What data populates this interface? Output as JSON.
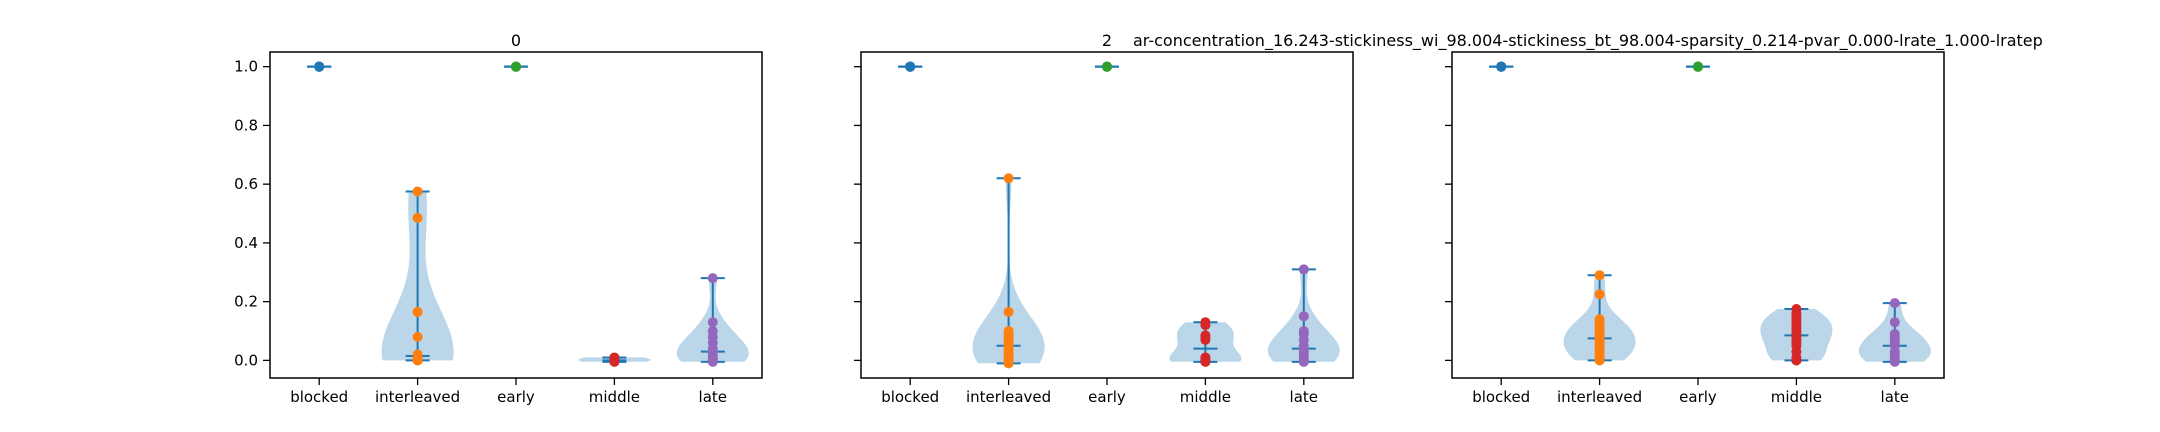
{
  "figure_title": "ar-concentration_16.243-stickiness_wi_98.004-stickiness_bt_98.004-sparsity_0.214-pvar_0.000-lrate_1.000-lratep",
  "chart_data": [
    {
      "type": "violin",
      "title": "0",
      "categories": [
        "blocked",
        "interleaved",
        "early",
        "middle",
        "late"
      ],
      "ylim": [
        -0.06,
        1.05
      ],
      "yticks": [
        0.0,
        0.2,
        0.4,
        0.6,
        0.8,
        1.0
      ],
      "ytick_labels": [
        "0.0",
        "0.2",
        "0.4",
        "0.6",
        "0.8",
        "1.0"
      ],
      "colors": [
        "#1f77b4",
        "#ff7f0e",
        "#2ca02c",
        "#d62728",
        "#9467bd"
      ],
      "series": [
        {
          "values": [
            1.0,
            1.0,
            1.0,
            1.0,
            1.0,
            1.0
          ]
        },
        {
          "values": [
            0.0,
            0.0,
            0.0,
            0.005,
            0.01,
            0.02,
            0.08,
            0.165,
            0.485,
            0.575
          ]
        },
        {
          "values": [
            1.0,
            1.0,
            1.0,
            1.0,
            1.0
          ]
        },
        {
          "values": [
            -0.005,
            0.0,
            0.0,
            0.005,
            0.01
          ]
        },
        {
          "values": [
            -0.005,
            0.0,
            0.0,
            0.005,
            0.01,
            0.02,
            0.03,
            0.04,
            0.06,
            0.08,
            0.1,
            0.13,
            0.28
          ]
        }
      ]
    },
    {
      "type": "violin",
      "title": "2",
      "categories": [
        "blocked",
        "interleaved",
        "early",
        "middle",
        "late"
      ],
      "ylim": [
        -0.06,
        1.05
      ],
      "yticks": [
        0.0,
        0.2,
        0.4,
        0.6,
        0.8,
        1.0
      ],
      "ytick_labels": [
        "",
        "",
        "",
        "",
        "",
        ""
      ],
      "colors": [
        "#1f77b4",
        "#ff7f0e",
        "#2ca02c",
        "#d62728",
        "#9467bd"
      ],
      "series": [
        {
          "values": [
            1.0,
            1.0,
            1.0,
            1.0,
            1.0,
            1.0
          ]
        },
        {
          "values": [
            -0.01,
            0.0,
            0.005,
            0.01,
            0.02,
            0.03,
            0.04,
            0.05,
            0.06,
            0.07,
            0.08,
            0.09,
            0.1,
            0.165,
            0.62
          ]
        },
        {
          "values": [
            1.0,
            1.0,
            1.0,
            1.0,
            1.0
          ]
        },
        {
          "values": [
            -0.005,
            0.0,
            0.0,
            0.005,
            0.01,
            0.07,
            0.08,
            0.085,
            0.12,
            0.13
          ]
        },
        {
          "values": [
            -0.005,
            0.0,
            0.0,
            0.01,
            0.02,
            0.03,
            0.04,
            0.05,
            0.07,
            0.09,
            0.1,
            0.15,
            0.31
          ]
        }
      ]
    },
    {
      "type": "violin",
      "title": "",
      "categories": [
        "blocked",
        "interleaved",
        "early",
        "middle",
        "late"
      ],
      "ylim": [
        -0.06,
        1.05
      ],
      "yticks": [
        0.0,
        0.2,
        0.4,
        0.6,
        0.8,
        1.0
      ],
      "ytick_labels": [
        "",
        "",
        "",
        "",
        "",
        ""
      ],
      "colors": [
        "#1f77b4",
        "#ff7f0e",
        "#2ca02c",
        "#d62728",
        "#9467bd"
      ],
      "series": [
        {
          "values": [
            1.0,
            1.0,
            1.0,
            1.0,
            1.0,
            1.0
          ]
        },
        {
          "values": [
            0.0,
            0.0,
            0.01,
            0.02,
            0.03,
            0.04,
            0.05,
            0.06,
            0.07,
            0.08,
            0.09,
            0.1,
            0.11,
            0.12,
            0.13,
            0.14,
            0.225,
            0.29
          ]
        },
        {
          "values": [
            1.0,
            1.0,
            1.0,
            1.0,
            1.0
          ]
        },
        {
          "values": [
            0.0,
            0.0,
            0.0,
            0.01,
            0.03,
            0.05,
            0.06,
            0.07,
            0.08,
            0.09,
            0.1,
            0.11,
            0.12,
            0.13,
            0.14,
            0.15,
            0.16,
            0.175
          ]
        },
        {
          "values": [
            -0.005,
            0.0,
            0.0,
            0.01,
            0.02,
            0.03,
            0.05,
            0.06,
            0.07,
            0.08,
            0.09,
            0.13,
            0.195
          ]
        }
      ]
    }
  ]
}
